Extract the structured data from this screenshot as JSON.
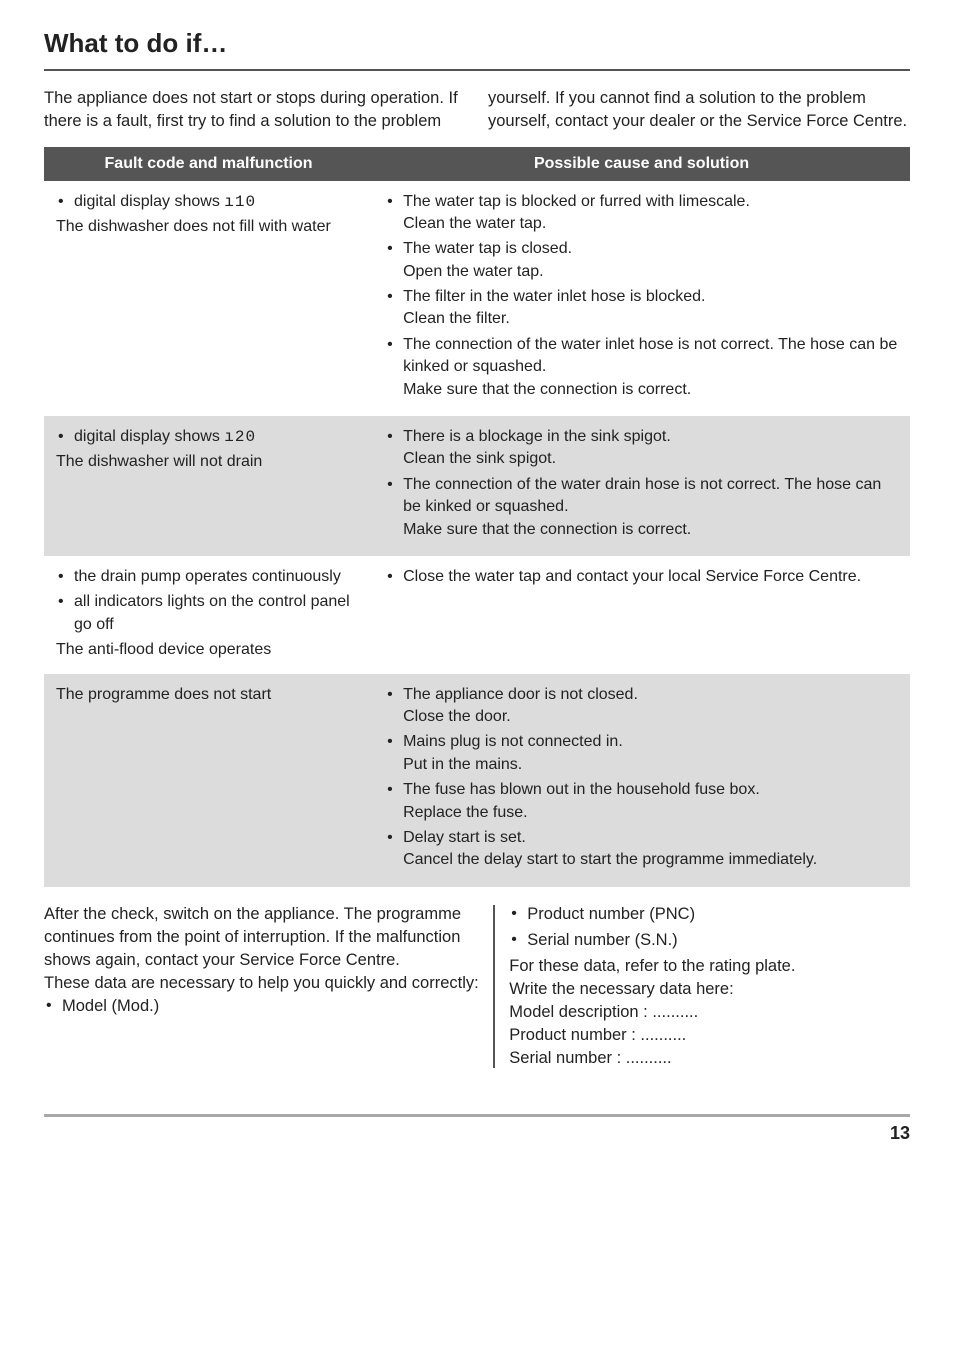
{
  "page": {
    "title": "What to do if…",
    "intro": "The appliance does not start or stops during operation.\nIf there is a fault, first try to find a solution to the problem yourself. If you cannot find a solution to the problem yourself, contact your dealer or the Service Force Centre.",
    "page_number": "13"
  },
  "table": {
    "head_left": "Fault code and malfunction",
    "head_right": "Possible cause and solution",
    "rows": [
      {
        "fault_bullets": [
          "digital display shows "
        ],
        "fault_code": "ı10",
        "fault_tail": "The dishwasher does not fill with water",
        "solutions": [
          {
            "line": "The water tap is blocked or furred with limescale.",
            "sub": "Clean the water tap."
          },
          {
            "line": "The water tap is closed.",
            "sub": "Open the water tap."
          },
          {
            "line": "The filter in the water inlet hose is blocked.",
            "sub": "Clean the filter."
          },
          {
            "line": "The connection of the water inlet hose is not correct. The hose can be kinked or squashed.",
            "sub": "Make sure that the connection is correct."
          }
        ]
      },
      {
        "fault_bullets": [
          "digital display shows "
        ],
        "fault_code": "ı20",
        "fault_tail": "The dishwasher will not drain",
        "solutions": [
          {
            "line": "There is a blockage in the sink spigot.",
            "sub": "Clean the sink spigot."
          },
          {
            "line": "The connection of the water drain hose is not correct. The hose can be kinked or squashed.",
            "sub": "Make sure that the connection is correct."
          }
        ]
      },
      {
        "fault_bullets": [
          "the drain pump operates continuously",
          "all indicators lights on the control panel go off"
        ],
        "fault_code": "",
        "fault_tail": "The anti-flood device operates",
        "solutions": [
          {
            "line": "Close the water tap and contact your local Service Force Centre.",
            "sub": ""
          }
        ]
      },
      {
        "fault_plain": "The programme does not start",
        "solutions": [
          {
            "line": "The appliance door is not closed.",
            "sub": "Close the door."
          },
          {
            "line": "Mains plug is not connected in.",
            "sub": "Put in the mains."
          },
          {
            "line": "The fuse has blown out in the household fuse box.",
            "sub": "Replace the fuse."
          },
          {
            "line": "Delay start is set.",
            "sub": "Cancel the delay start to start the programme immediately."
          }
        ]
      }
    ]
  },
  "after": {
    "left_para": "After the check, switch on the appliance. The programme continues from the point of interruption. If the malfunction shows again, contact your Service Force Centre.",
    "left_para2": "These data are necessary to help you quickly and correctly:",
    "left_bullets": [
      "Model (Mod.)"
    ],
    "right_bullets": [
      "Product number (PNC)",
      "Serial number (S.N.)"
    ],
    "right_para": "For these data, refer to the rating plate.",
    "right_para2": "Write the necessary data here:",
    "right_lines": [
      "Model description : ..........",
      "Product number : ..........",
      "Serial number : .........."
    ]
  }
}
